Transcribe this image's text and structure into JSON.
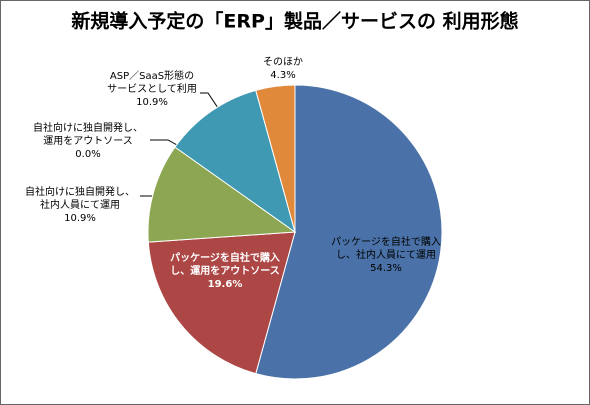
{
  "chart_data": {
    "type": "pie",
    "title": "新規導入予定の「ERP」製品／サービスの 利用形態",
    "categories": [
      [
        "パッケージを自社で購入",
        "し、社内人員にて運用"
      ],
      [
        "パッケージを自社で購入",
        "し、運用をアウトソース"
      ],
      [
        "自社向けに独自開発し、",
        "社内人員にて運用"
      ],
      [
        "自社向けに独自開発し、",
        "運用をアウトソース"
      ],
      [
        "ASP／SaaS形態の",
        "サービスとして利用"
      ],
      [
        "そのほか"
      ]
    ],
    "values": [
      54.3,
      19.6,
      10.9,
      0.0,
      10.9,
      4.3
    ],
    "value_labels": [
      "54.3%",
      "19.6%",
      "10.9%",
      "0.0%",
      "10.9%",
      "4.3%"
    ],
    "colors": [
      "#4a72a8",
      "#ad4745",
      "#8ca651",
      "#6b5590",
      "#3f99b3",
      "#e0893b"
    ]
  }
}
